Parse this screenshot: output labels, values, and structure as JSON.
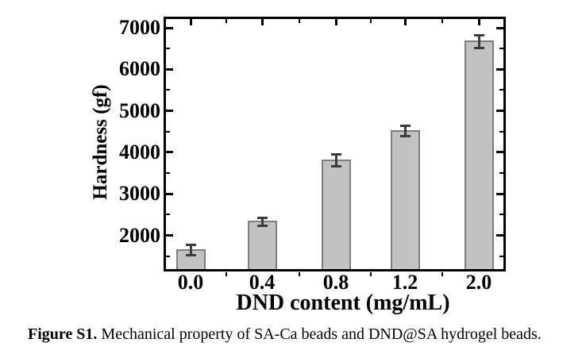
{
  "figure": {
    "caption_label": "Figure S1.",
    "caption_text": " Mechanical property of SA-Ca beads and DND@SA hydrogel beads."
  },
  "chart_data": {
    "type": "bar",
    "title": "",
    "xlabel": "DND content (mg/mL)",
    "ylabel": "Hardness (gf)",
    "categories": [
      "0.0",
      "0.4",
      "0.8",
      "1.2",
      "2.0"
    ],
    "values": [
      1650,
      2330,
      3810,
      4510,
      6670
    ],
    "errors": [
      120,
      100,
      150,
      120,
      150
    ],
    "ylim": [
      1150,
      7230
    ],
    "yticks": [
      2000,
      3000,
      4000,
      5000,
      6000,
      7000
    ],
    "y_minor_ticks": [
      1500,
      2500,
      3500,
      4500,
      5500,
      6500
    ],
    "grid": false,
    "legend": null,
    "error_bars": true,
    "colors": {
      "bar_fill": "#c2c2c2",
      "bar_border": "#7e7e7e",
      "error_bar": "#3b3b3b",
      "axis": "#000000",
      "text": "#000000"
    }
  }
}
